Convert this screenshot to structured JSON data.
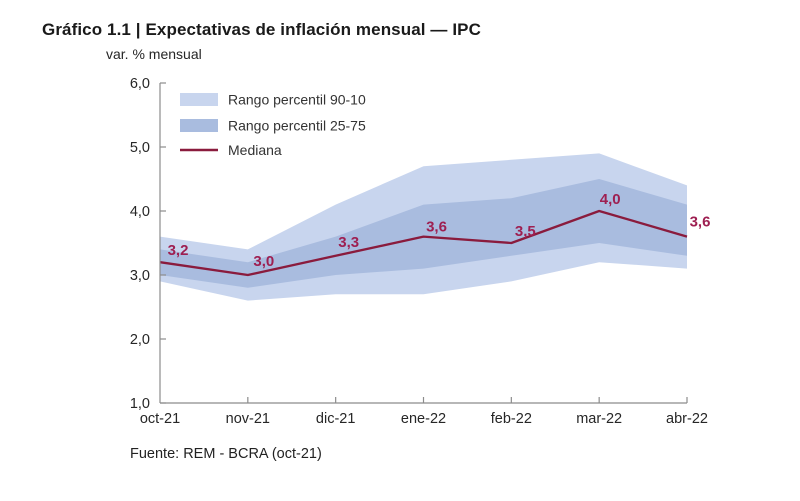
{
  "chart_data": {
    "type": "area",
    "title": "Gráfico 1.1 | Expectativas de inflación mensual — IPC",
    "ylabel": "var. % mensual",
    "xlabel": "",
    "source": "Fuente: REM - BCRA (oct-21)",
    "categories": [
      "oct-21",
      "nov-21",
      "dic-21",
      "ene-22",
      "feb-22",
      "mar-22",
      "abr-22"
    ],
    "series": [
      {
        "name": "Rango percentil 90-10",
        "type": "band",
        "upper": [
          3.6,
          3.4,
          4.1,
          4.7,
          4.8,
          4.9,
          4.4
        ],
        "lower": [
          2.9,
          2.6,
          2.7,
          2.7,
          2.9,
          3.2,
          3.1
        ],
        "color": "#c8d5ee"
      },
      {
        "name": "Rango percentil 25-75",
        "type": "band",
        "upper": [
          3.4,
          3.2,
          3.6,
          4.1,
          4.2,
          4.5,
          4.1
        ],
        "lower": [
          3.0,
          2.8,
          3.0,
          3.1,
          3.3,
          3.5,
          3.3
        ],
        "color": "#a9bcdf"
      },
      {
        "name": "Mediana",
        "type": "line",
        "values": [
          3.2,
          3.0,
          3.3,
          3.6,
          3.5,
          4.0,
          3.6
        ],
        "labels": [
          "3,2",
          "3,0",
          "3,3",
          "3,6",
          "3,5",
          "4,0",
          "3,6"
        ],
        "color": "#8a1b3d"
      }
    ],
    "ylim": [
      1.0,
      6.0
    ],
    "ytick_step": 1.0,
    "ytick_labels": [
      "1,0",
      "2,0",
      "3,0",
      "4,0",
      "5,0",
      "6,0"
    ],
    "grid": false,
    "legend_position": "top-left-inside",
    "colors": {
      "data_label": "#9e1f51",
      "axis_line": "#8c8c8c",
      "tick_text": "#262626",
      "legend_text": "#333333",
      "title_text": "#1a1a1a",
      "background": "#ffffff"
    }
  }
}
